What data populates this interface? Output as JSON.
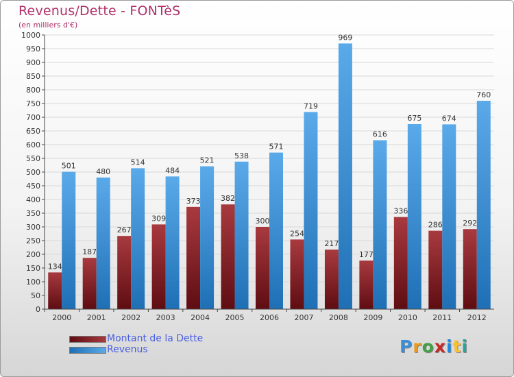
{
  "header": {
    "title": "Revenus/Dette - FONTèS",
    "subtitle": "(en milliers d'€)"
  },
  "logo": {
    "text": "Proxiti",
    "letters": [
      "P",
      "r",
      "o",
      "x",
      "i",
      "t",
      "i"
    ],
    "colors": [
      "#3b8fd9",
      "#e89a1f",
      "#43a047",
      "#c62828",
      "#1e88e5",
      "#fbc02d",
      "#26a69a"
    ]
  },
  "colors": {
    "dette_dark": "#5e0d12",
    "dette_light": "#a83a3f",
    "revenus_dark": "#1f6fb5",
    "revenus_light": "#5aaaea",
    "grid": "#d8d8d8",
    "axis": "#444444"
  },
  "chart_data": {
    "type": "bar",
    "title": "Revenus/Dette - FONTèS",
    "subtitle": "(en milliers d'€)",
    "categories": [
      "2000",
      "2001",
      "2002",
      "2003",
      "2004",
      "2005",
      "2006",
      "2007",
      "2008",
      "2009",
      "2010",
      "2011",
      "2012"
    ],
    "series": [
      {
        "name": "Montant de la Dette",
        "values": [
          134,
          187,
          267,
          309,
          373,
          382,
          300,
          254,
          217,
          177,
          336,
          286,
          292
        ]
      },
      {
        "name": "Revenus",
        "values": [
          501,
          480,
          514,
          484,
          521,
          538,
          571,
          719,
          969,
          616,
          675,
          674,
          760
        ]
      }
    ],
    "ylim": [
      0,
      1000
    ],
    "ytick_step": 50,
    "grid": true,
    "legend_position": "bottom-left"
  }
}
